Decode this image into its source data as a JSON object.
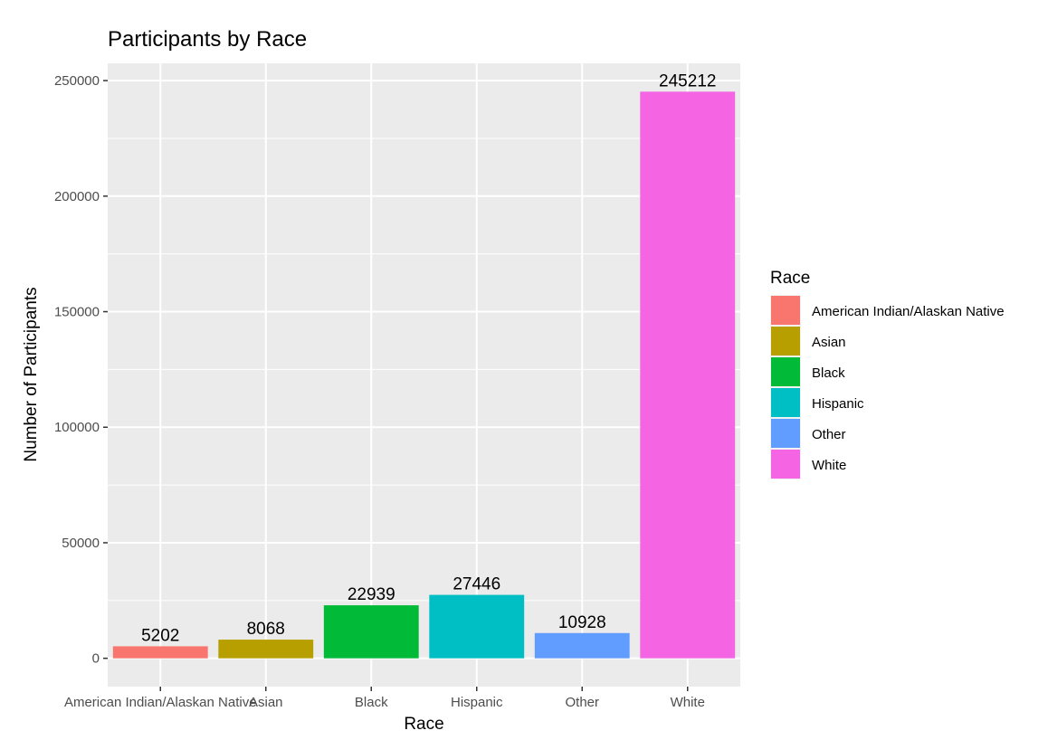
{
  "chart_data": {
    "type": "bar",
    "title": "Participants by Race",
    "xlabel": "Race",
    "ylabel": "Number of Participants",
    "categories": [
      "American Indian/Alaskan Native",
      "Asian",
      "Black",
      "Hispanic",
      "Other",
      "White"
    ],
    "values": [
      5202,
      8068,
      22939,
      27446,
      10928,
      245212
    ],
    "colors": [
      "#F8766D",
      "#B79F00",
      "#00BA38",
      "#00BFC4",
      "#619CFF",
      "#F564E3"
    ],
    "ylim": [
      -12261,
      257473
    ],
    "yticks": [
      0,
      50000,
      100000,
      150000,
      200000,
      250000
    ],
    "ytick_labels": [
      "0",
      "50000",
      "100000",
      "150000",
      "200000",
      "250000"
    ],
    "grid": true,
    "panel_color": "#EBEBEB",
    "grid_color": "#FFFFFF",
    "legend": {
      "title": "Race",
      "position": "right",
      "entries": [
        "American Indian/Alaskan Native",
        "Asian",
        "Black",
        "Hispanic",
        "Other",
        "White"
      ]
    }
  }
}
